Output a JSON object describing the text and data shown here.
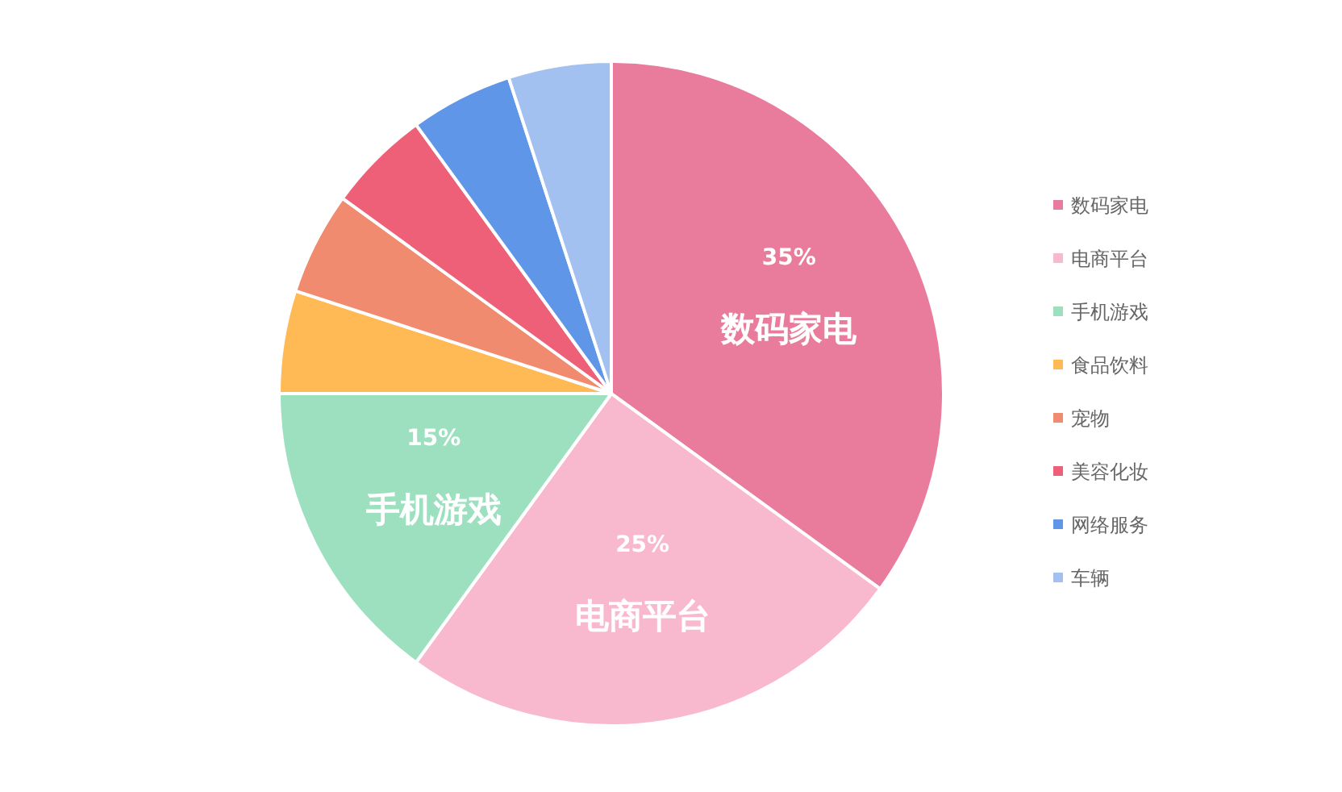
{
  "chart_data": {
    "type": "pie",
    "categories": [
      "数码家电",
      "电商平台",
      "手机游戏",
      "食品饮料",
      "宠物",
      "美容化妆",
      "网络服务",
      "车辆"
    ],
    "values": [
      35,
      25,
      15,
      5,
      5,
      5,
      5,
      5
    ],
    "colors": [
      "#e97c9c",
      "#f8b9cf",
      "#9ce0c0",
      "#ffb955",
      "#f08b70",
      "#ee5f78",
      "#6096e8",
      "#a2c1f0"
    ],
    "value_labels": [
      "35%",
      "25%",
      "15%",
      null,
      null,
      null,
      null,
      null
    ],
    "legend": "right"
  }
}
